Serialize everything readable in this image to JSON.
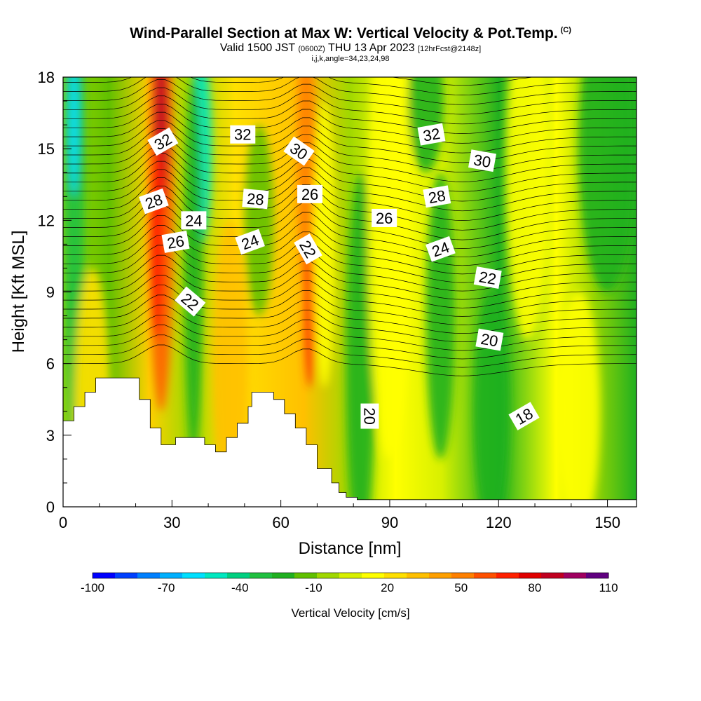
{
  "header": {
    "title": "Wind-Parallel Section at Max W: Vertical Velocity & Pot.Temp.",
    "copyright": "(C)",
    "valid_prefix": "Valid 1500 JST",
    "utc": "(0600Z)",
    "valid_date": "THU 13 Apr 2023",
    "forecast": "[12hrFcst@2148z]",
    "indices": "i,j,k,angle=34,23,24,98"
  },
  "chart_data": {
    "type": "heatmap",
    "xlabel": "Distance [nm]",
    "ylabel": "Height [Kft MSL]",
    "xlim": [
      0,
      158
    ],
    "ylim": [
      0,
      18
    ],
    "x_ticks": [
      "0",
      "30",
      "60",
      "90",
      "120",
      "150"
    ],
    "y_ticks": [
      "0",
      "3",
      "6",
      "9",
      "12",
      "15",
      "18"
    ],
    "colorbar": {
      "label": "Vertical Velocity [cm/s]",
      "tick_labels": [
        "-100",
        "-70",
        "-40",
        "-10",
        "20",
        "50",
        "80",
        "110"
      ],
      "colors": [
        "#0000ff",
        "#0040ff",
        "#0080ff",
        "#00b0ff",
        "#00e0ff",
        "#00e8c0",
        "#00d080",
        "#20c040",
        "#20b020",
        "#60c000",
        "#a0d800",
        "#d8f000",
        "#ffff00",
        "#ffe000",
        "#ffc000",
        "#ffa000",
        "#ff8000",
        "#ff5000",
        "#ff2000",
        "#e00000",
        "#c00020",
        "#a00060",
        "#600080"
      ]
    },
    "contour_labels": [
      {
        "text": "32",
        "x": 27.5,
        "y": 15.3,
        "rot": 30
      },
      {
        "text": "32",
        "x": 49.5,
        "y": 15.6,
        "rot": 0
      },
      {
        "text": "32",
        "x": 101.5,
        "y": 15.6,
        "rot": 10
      },
      {
        "text": "30",
        "x": 65,
        "y": 14.9,
        "rot": -35
      },
      {
        "text": "30",
        "x": 115.5,
        "y": 14.5,
        "rot": -10
      },
      {
        "text": "28",
        "x": 25,
        "y": 12.8,
        "rot": 20
      },
      {
        "text": "28",
        "x": 53,
        "y": 12.9,
        "rot": -5
      },
      {
        "text": "28",
        "x": 103,
        "y": 13.0,
        "rot": 10
      },
      {
        "text": "26",
        "x": 68,
        "y": 13.1,
        "rot": 0
      },
      {
        "text": "26",
        "x": 88.5,
        "y": 12.1,
        "rot": 0
      },
      {
        "text": "26",
        "x": 31,
        "y": 11.1,
        "rot": 10
      },
      {
        "text": "24",
        "x": 36,
        "y": 12.0,
        "rot": 0
      },
      {
        "text": "24",
        "x": 51.5,
        "y": 11.1,
        "rot": 20
      },
      {
        "text": "24",
        "x": 104,
        "y": 10.8,
        "rot": 20
      },
      {
        "text": "22",
        "x": 67.5,
        "y": 10.8,
        "rot": -60
      },
      {
        "text": "22",
        "x": 117,
        "y": 9.6,
        "rot": -10
      },
      {
        "text": "22",
        "x": 35,
        "y": 8.6,
        "rot": -40
      },
      {
        "text": "20",
        "x": 117.5,
        "y": 7.0,
        "rot": -10
      },
      {
        "text": "20",
        "x": 84.5,
        "y": 3.8,
        "rot": -90
      },
      {
        "text": "18",
        "x": 127,
        "y": 3.8,
        "rot": 30
      }
    ]
  }
}
